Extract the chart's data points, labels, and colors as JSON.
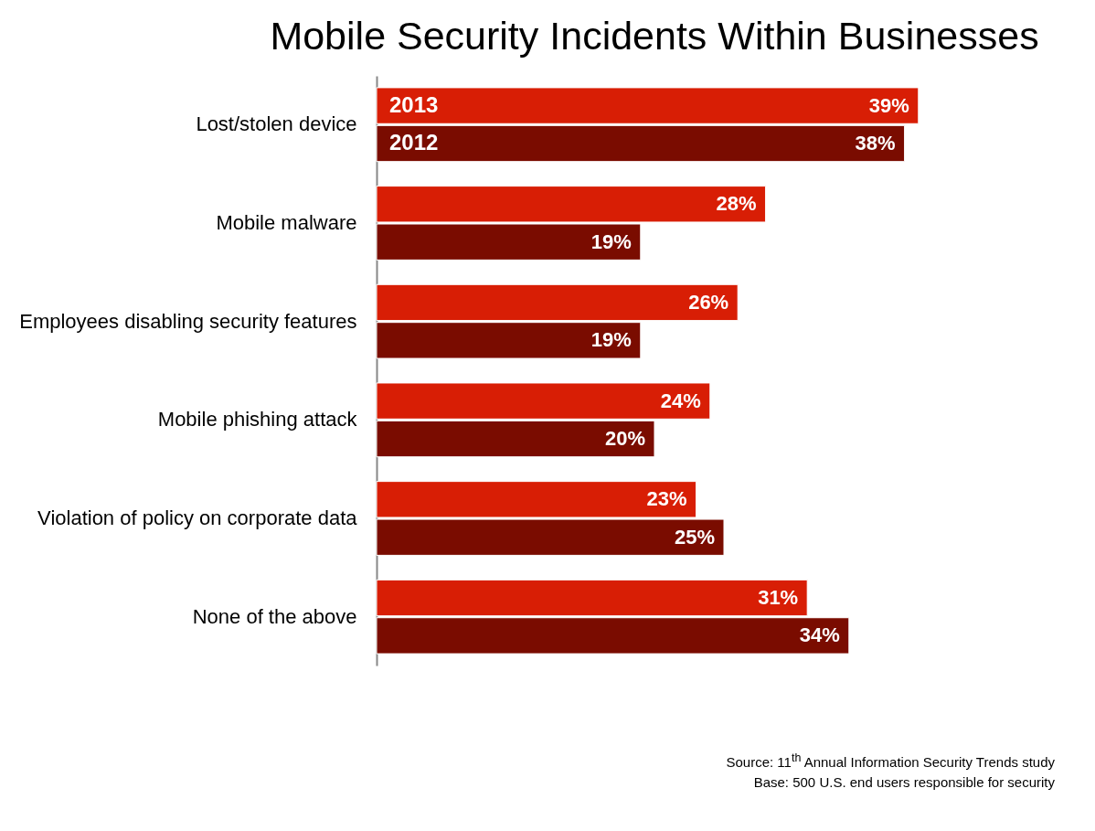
{
  "chart_data": {
    "type": "bar",
    "orientation": "horizontal",
    "title": "Mobile Security Incidents Within Businesses",
    "categories": [
      "Lost/stolen device",
      "Mobile malware",
      "Employees disabling security features",
      "Mobile phishing attack",
      "Violation of policy on corporate data",
      "None of the above"
    ],
    "series": [
      {
        "name": "2013",
        "color": "#d81e05",
        "values": [
          39,
          28,
          26,
          24,
          23,
          31
        ],
        "value_labels": [
          "39%",
          "28%",
          "26%",
          "24%",
          "23%",
          "31%"
        ]
      },
      {
        "name": "2012",
        "color": "#7a0c00",
        "values": [
          38,
          19,
          19,
          20,
          25,
          34
        ],
        "value_labels": [
          "38%",
          "19%",
          "19%",
          "20%",
          "25%",
          "34%"
        ]
      }
    ],
    "grid": false,
    "annotations": [
      "Source: 11$^{th}$ Annual Information Security Trends study",
      "Base: 500 U.S. end users responsible for security"
    ]
  }
}
